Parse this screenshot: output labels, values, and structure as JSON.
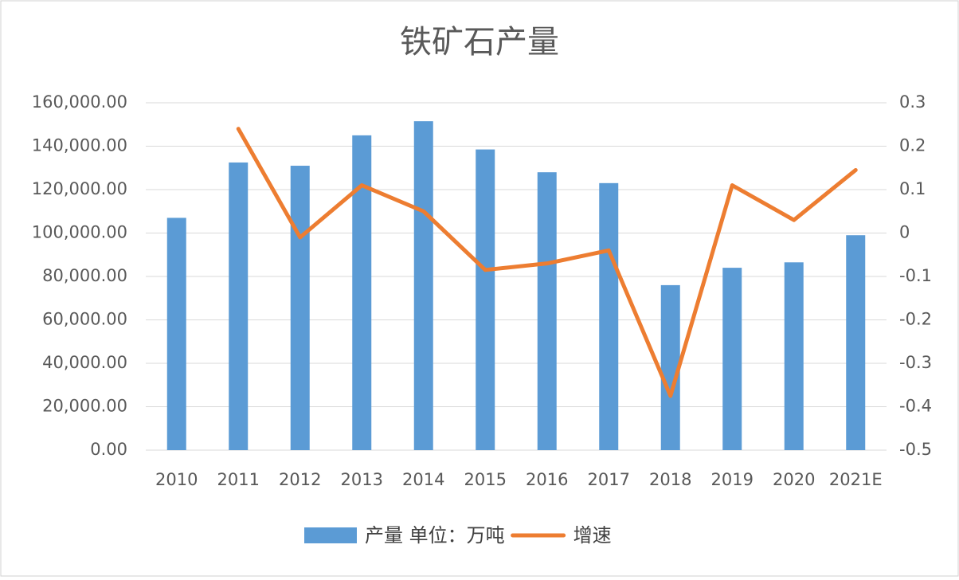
{
  "chart_data": {
    "type": "combo",
    "title": "铁矿石产量",
    "categories": [
      "2010",
      "2011",
      "2012",
      "2013",
      "2014",
      "2015",
      "2016",
      "2017",
      "2018",
      "2019",
      "2020",
      "2021E"
    ],
    "series": [
      {
        "name": "产量 单位：万吨",
        "type": "bar",
        "color": "#5b9bd5",
        "axis": "y",
        "values": [
          107000,
          132500,
          131000,
          145000,
          151500,
          138500,
          128000,
          123000,
          76000,
          84000,
          86500,
          99000
        ]
      },
      {
        "name": "增速",
        "type": "line",
        "color": "#ed7d31",
        "axis": "y2",
        "values": [
          null,
          0.24,
          -0.01,
          0.11,
          0.05,
          -0.085,
          -0.07,
          -0.04,
          -0.375,
          0.11,
          0.03,
          0.145
        ]
      }
    ],
    "ylim": [
      0,
      160000
    ],
    "yticks": [
      {
        "value": 0,
        "label": "0.00"
      },
      {
        "value": 20000,
        "label": "20,000.00"
      },
      {
        "value": 40000,
        "label": "40,000.00"
      },
      {
        "value": 60000,
        "label": "60,000.00"
      },
      {
        "value": 80000,
        "label": "80,000.00"
      },
      {
        "value": 100000,
        "label": "100,000.00"
      },
      {
        "value": 120000,
        "label": "120,000.00"
      },
      {
        "value": 140000,
        "label": "140,000.00"
      },
      {
        "value": 160000,
        "label": "160,000.00"
      }
    ],
    "y2lim": [
      -0.5,
      0.3
    ],
    "y2ticks": [
      -0.5,
      -0.4,
      -0.3,
      -0.2,
      -0.1,
      0,
      0.1,
      0.2,
      0.3
    ],
    "grid": true,
    "legend": "bottom"
  }
}
